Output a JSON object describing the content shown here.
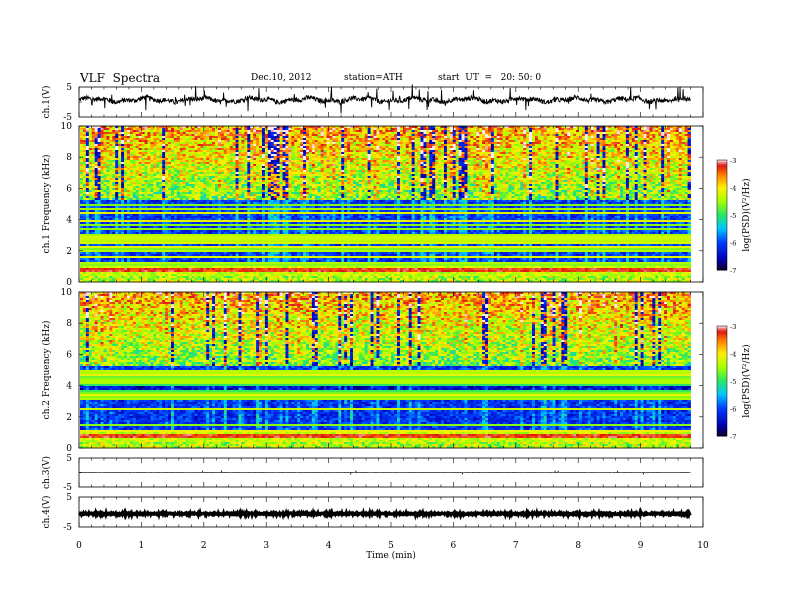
{
  "header": {
    "title": "VLF  Spectra",
    "date": "Dec.10, 2012",
    "station": "station=ATH",
    "start": "start  UT  =   20: 50: 0"
  },
  "chart_data": [
    {
      "type": "line",
      "name": "ch1-waveform",
      "ylabel": "ch.1(V)",
      "ylim": [
        -5,
        5
      ],
      "yticks": [
        "5",
        "-5"
      ],
      "xlim": [
        0,
        10
      ],
      "x_end_min": 9.8,
      "baseline_v": 0.7,
      "noise_v": 0.8
    },
    {
      "type": "heatmap",
      "name": "ch1-spectrogram",
      "ylabel": "ch.1  Frequency  (kHz)",
      "ylim": [
        0,
        10
      ],
      "yticks": [
        "0",
        "2",
        "4",
        "6",
        "8",
        "10"
      ],
      "xlim": [
        0,
        9.8
      ],
      "colorbar": {
        "label": "log(PSD)(V²/Hz)",
        "range": [
          -7,
          -3
        ],
        "ticks": [
          "-3",
          "-4",
          "-5",
          "-6",
          "-7"
        ]
      }
    },
    {
      "type": "heatmap",
      "name": "ch2-spectrogram",
      "ylabel": "ch.2  Frequency  (kHz)",
      "ylim": [
        0,
        10
      ],
      "yticks": [
        "0",
        "2",
        "4",
        "6",
        "8",
        "10"
      ],
      "xlim": [
        0,
        9.8
      ],
      "colorbar": {
        "label": "log(PSD)(V²/Hz)",
        "range": [
          -7,
          -3
        ],
        "ticks": [
          "-3",
          "-4",
          "-5",
          "-6",
          "-7"
        ]
      }
    },
    {
      "type": "line",
      "name": "ch3-waveform",
      "ylabel": "ch.3(V)",
      "ylim": [
        -5,
        5
      ],
      "yticks": [
        "5",
        "-5"
      ],
      "xlim": [
        0,
        10
      ],
      "x_end_min": 9.8,
      "baseline_v": 0,
      "noise_v": 0.05
    },
    {
      "type": "line",
      "name": "ch4-waveform",
      "ylabel": "ch.4(V)",
      "ylim": [
        -5,
        5
      ],
      "yticks": [
        "5",
        "-5"
      ],
      "xlim": [
        0,
        10
      ],
      "x_end_min": 9.8,
      "baseline_v": -0.6,
      "noise_v": 0.3
    }
  ],
  "x_axis": {
    "label": "Time  (min)",
    "range": [
      0,
      10
    ],
    "ticks": [
      "0",
      "1",
      "2",
      "3",
      "4",
      "5",
      "6",
      "7",
      "8",
      "9",
      "10"
    ]
  }
}
